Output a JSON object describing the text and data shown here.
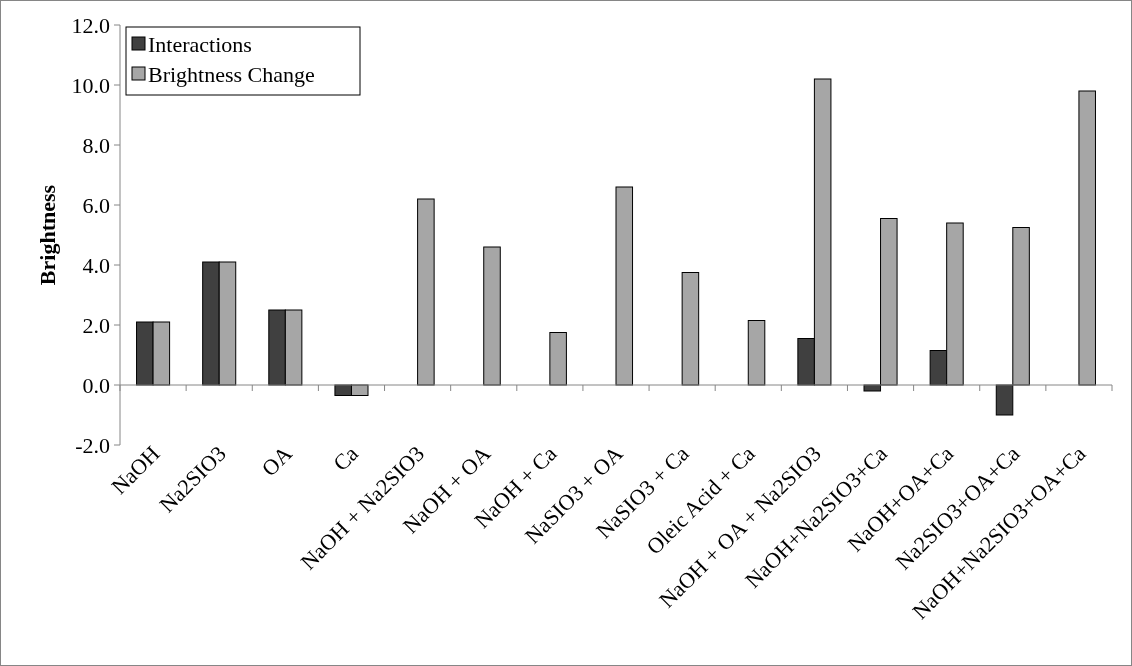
{
  "chart_data": {
    "type": "bar",
    "ylabel": "Brightness",
    "categories": [
      "NaOH",
      "Na2SIO3",
      "OA",
      "Ca",
      "NaOH + Na2SIO3",
      "NaOH + OA",
      "NaOH + Ca",
      "NaSIO3 + OA",
      "NaSIO3 + Ca",
      "Oleic Acid + Ca",
      "NaOH + OA + Na2SIO3",
      "NaOH+Na2SIO3+Ca",
      "NaOH+OA+Ca",
      "Na2SIO3+OA+Ca",
      "NaOH+Na2SIO3+OA+Ca"
    ],
    "series": [
      {
        "name": "Interactions",
        "color": "#404040",
        "values": [
          2.1,
          4.1,
          2.5,
          -0.35,
          null,
          null,
          null,
          null,
          null,
          null,
          1.55,
          -0.2,
          1.15,
          -1.0,
          null
        ]
      },
      {
        "name": "Brightness Change",
        "color": "#a6a6a6",
        "values": [
          2.1,
          4.1,
          2.5,
          -0.35,
          6.2,
          4.6,
          1.75,
          6.6,
          3.75,
          2.15,
          10.2,
          5.55,
          5.4,
          5.25,
          9.8
        ]
      }
    ],
    "ylim": [
      -2,
      12
    ],
    "yticks": [
      {
        "value": -2,
        "label": "-2.0"
      },
      {
        "value": 0,
        "label": "0.0"
      },
      {
        "value": 2,
        "label": "2.0"
      },
      {
        "value": 4,
        "label": "4.0"
      },
      {
        "value": 6,
        "label": "6.0"
      },
      {
        "value": 8,
        "label": "8.0"
      },
      {
        "value": 10,
        "label": "10.0"
      },
      {
        "value": 12,
        "label": "12.0"
      }
    ],
    "legend": "top left"
  }
}
